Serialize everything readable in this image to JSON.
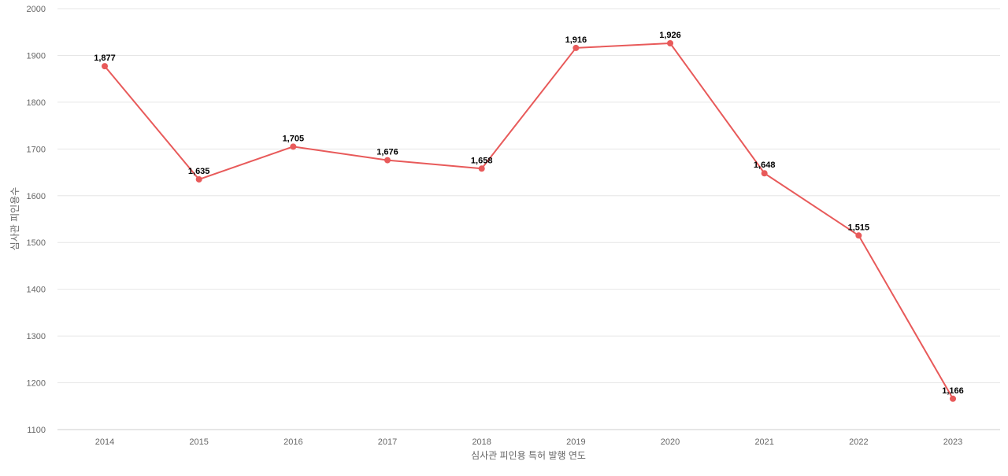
{
  "chart_data": {
    "type": "line",
    "title": "",
    "xlabel": "심사관 피인용 특허 발행 연도",
    "ylabel": "심사관 피인용수",
    "categories": [
      "2014",
      "2015",
      "2016",
      "2017",
      "2018",
      "2019",
      "2020",
      "2021",
      "2022",
      "2023"
    ],
    "series": [
      {
        "values": [
          1877,
          1635,
          1705,
          1676,
          1658,
          1916,
          1926,
          1648,
          1515,
          1166
        ],
        "labels": [
          "1,877",
          "1,635",
          "1,705",
          "1,676",
          "1,658",
          "1,916",
          "1,926",
          "1,648",
          "1,515",
          "1,166"
        ]
      }
    ],
    "ylim": [
      1100,
      2000
    ],
    "yticks": [
      "1100",
      "1200",
      "1300",
      "1400",
      "1500",
      "1600",
      "1700",
      "1800",
      "1900",
      "2000"
    ],
    "grid": true,
    "line_color": "#e85a5a"
  }
}
